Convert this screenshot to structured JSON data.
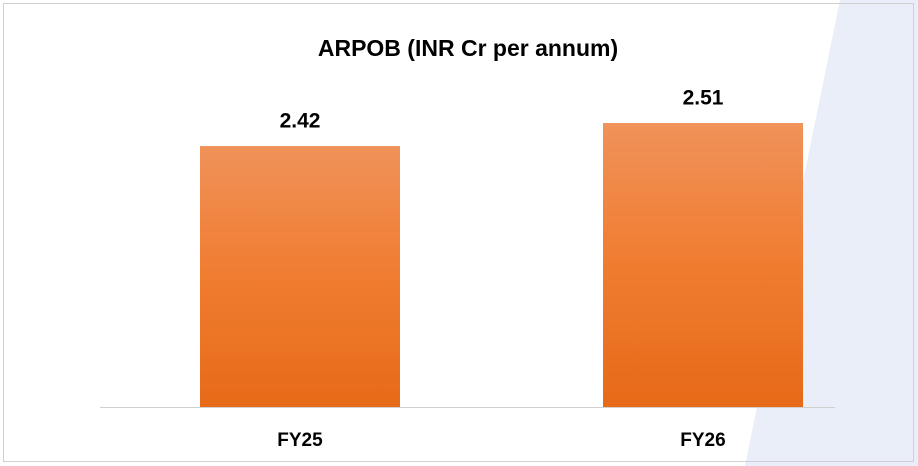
{
  "chart_data": {
    "type": "bar",
    "title": "ARPOB (INR Cr per annum)",
    "categories": [
      "FY25",
      "FY26"
    ],
    "values": [
      2.42,
      2.51
    ],
    "color": "#ee7a30",
    "ylim": [
      1.4,
      2.6
    ]
  }
}
